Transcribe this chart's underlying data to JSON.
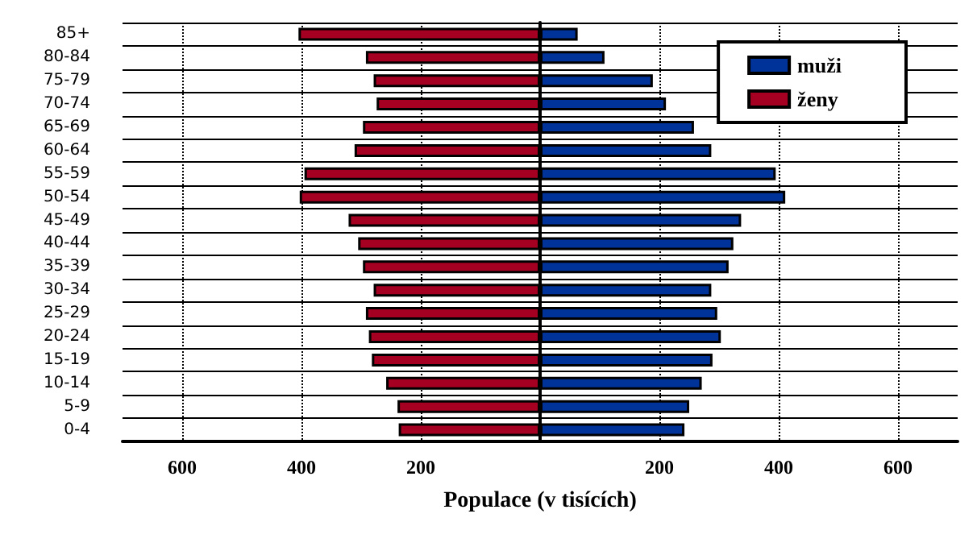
{
  "chart_data": {
    "type": "bar",
    "orientation": "horizontal",
    "xlabel": "Populace (v tisících)",
    "categories": [
      "85+",
      "80-84",
      "75-79",
      "70-74",
      "65-69",
      "60-64",
      "55-59",
      "50-54",
      "45-49",
      "40-44",
      "35-39",
      "30-34",
      "25-29",
      "20-24",
      "15-19",
      "10-14",
      "5-9",
      "0-4"
    ],
    "series": [
      {
        "name": "muži",
        "color": "#003399",
        "values": [
          63,
          108,
          189,
          211,
          258,
          287,
          395,
          411,
          337,
          324,
          316,
          287,
          297,
          303,
          289,
          271,
          250,
          242
        ]
      },
      {
        "name": "ženy",
        "color": "#a50021",
        "values": [
          -405,
          -292,
          -279,
          -274,
          -297,
          -311,
          -395,
          -403,
          -321,
          -305,
          -297,
          -279,
          -292,
          -287,
          -282,
          -258,
          -239,
          -237
        ]
      }
    ],
    "xlim": [
      -700,
      700
    ],
    "xticks": [
      {
        "value": -600,
        "label": "600"
      },
      {
        "value": -400,
        "label": "400"
      },
      {
        "value": -200,
        "label": "200"
      },
      {
        "value": 0,
        "label": null
      },
      {
        "value": 200,
        "label": "200"
      },
      {
        "value": 400,
        "label": "400"
      },
      {
        "value": 600,
        "label": "600"
      }
    ],
    "grid": true,
    "legend": "top right",
    "stacked": true
  }
}
